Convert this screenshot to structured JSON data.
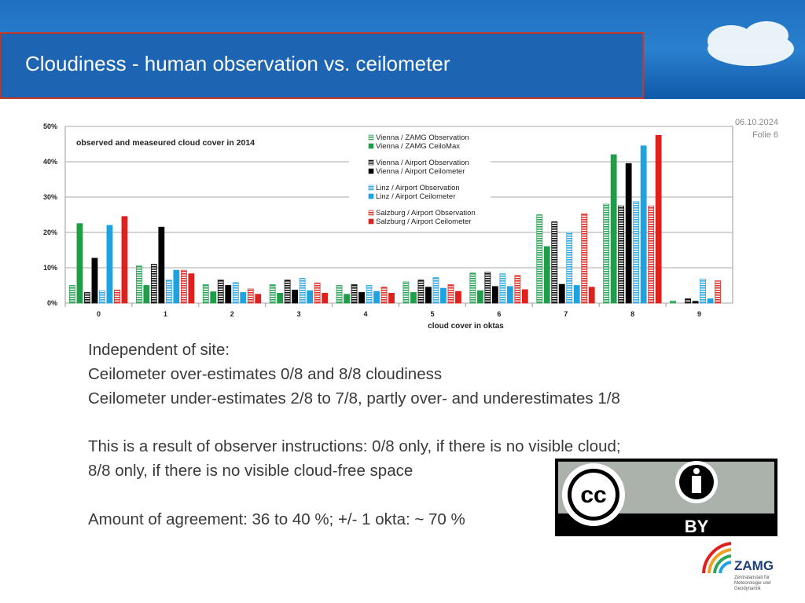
{
  "slide": {
    "title": "Cloudiness - human observation vs. ceilometer",
    "date": "06.10.2024",
    "folio": "Folie 6",
    "body": [
      "Independent of site:",
      "Ceilometer over-estimates 0/8 and 8/8 cloudiness",
      "Ceilometer under-estimates 2/8 to 7/8, partly over- and underestimates 1/8",
      "This is a result of observer instructions: 0/8 only, if there is no visible cloud;",
      "8/8 only, if there is no visible cloud-free space",
      "Amount of agreement: 36 to 40 %; +/- 1 okta:  ~ 70 %"
    ],
    "license": {
      "cc": "cc",
      "by": "BY"
    },
    "logo": {
      "name": "ZAMG",
      "lines": [
        "Zentralanstalt für",
        "Meteorologie und",
        "Geodynamik"
      ]
    }
  },
  "chart_data": {
    "type": "bar",
    "title": "observed and measeured cloud cover in 2014",
    "x_label": "cloud cover in oktas",
    "categories": [
      "0",
      "1",
      "2",
      "3",
      "4",
      "5",
      "6",
      "7",
      "8",
      "9"
    ],
    "ylim": [
      0,
      50
    ],
    "yticks": [
      {
        "value": 0,
        "label": "0%"
      },
      {
        "value": 10,
        "label": "10%"
      },
      {
        "value": 20,
        "label": "20%"
      },
      {
        "value": 30,
        "label": "30%"
      },
      {
        "value": 40,
        "label": "40%"
      },
      {
        "value": 50,
        "label": "50%"
      }
    ],
    "grid": true,
    "series": [
      {
        "name": "Vienna / ZAMG Observation",
        "color": "#2ea35a",
        "hatched": true,
        "values": [
          5,
          10.5,
          5.2,
          5.2,
          5,
          6,
          8.5,
          25,
          28,
          0.6
        ]
      },
      {
        "name": "Vienna / ZAMG CeiloMax",
        "color": "#1f9e4a",
        "hatched": false,
        "values": [
          22.5,
          5,
          3.2,
          2.8,
          2.5,
          3,
          3.5,
          16,
          42,
          0
        ]
      },
      {
        "name": "Vienna / Airport Observation",
        "color": "#111111",
        "hatched": true,
        "values": [
          3,
          11,
          6.5,
          6.5,
          5.2,
          6.5,
          8.7,
          23,
          27.5,
          1.2
        ]
      },
      {
        "name": "Vienna / Airport Ceilometer",
        "color": "#000000",
        "hatched": false,
        "values": [
          12.7,
          21.5,
          5,
          3.7,
          3,
          4.5,
          4.7,
          5.3,
          39.5,
          0.5
        ]
      },
      {
        "name": "Linz / Airport Observation",
        "color": "#35a9e0",
        "hatched": true,
        "values": [
          3.5,
          6.5,
          5.8,
          7,
          5,
          7.2,
          8.3,
          20,
          28.7,
          6.8
        ]
      },
      {
        "name": "Linz / Airport Ceilometer",
        "color": "#1ea3e0",
        "hatched": false,
        "values": [
          22,
          9.3,
          3,
          3.5,
          3.3,
          4.2,
          4.7,
          5,
          44.5,
          1.2
        ]
      },
      {
        "name": "Salzburg / Airport Observation",
        "color": "#e0302c",
        "hatched": true,
        "values": [
          3.7,
          9.3,
          4,
          5.7,
          4.5,
          5.2,
          7.8,
          25.3,
          27.5,
          6.3
        ]
      },
      {
        "name": "Salzburg / Airport Ceilometer",
        "color": "#e0201c",
        "hatched": false,
        "values": [
          24.5,
          8.3,
          2.5,
          2.8,
          2.8,
          3.3,
          3.8,
          4.5,
          47.5,
          0
        ]
      }
    ]
  }
}
